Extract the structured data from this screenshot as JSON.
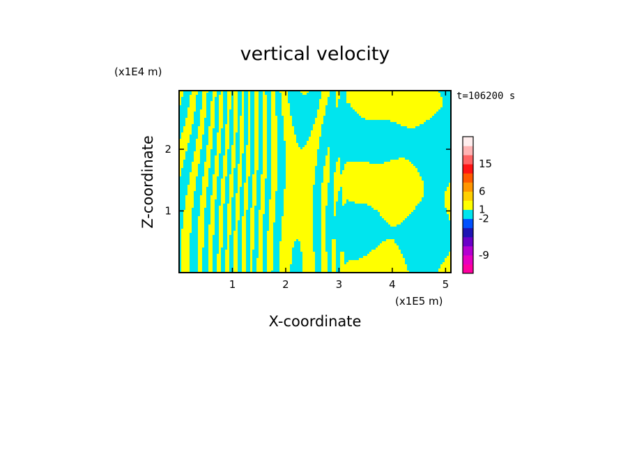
{
  "chart_data": {
    "type": "heatmap",
    "title": "vertical velocity",
    "xlabel": "X-coordinate",
    "ylabel": "Z-coordinate",
    "x_unit": "(x1E5 m)",
    "y_unit": "(x1E4 m)",
    "time_label": "t=106200 s",
    "xlim": [
      0,
      5.1
    ],
    "ylim": [
      0,
      2.95
    ],
    "x_ticks": [
      "1",
      "2",
      "3",
      "4",
      "5"
    ],
    "y_ticks": [
      "1",
      "2"
    ],
    "x_tick_values": [
      1,
      2,
      3,
      4,
      5
    ],
    "y_tick_values": [
      1,
      2
    ],
    "field_colors": {
      "positive": "#ffff00",
      "negative": "#00e5ee"
    },
    "colorbar": {
      "labels": [
        "15",
        "6",
        "1",
        "-2",
        "-9"
      ],
      "label_values": [
        15,
        6,
        1,
        -2,
        -9
      ],
      "bands": [
        {
          "color": "#ff00a0"
        },
        {
          "color": "#e600c0"
        },
        {
          "color": "#b400d0"
        },
        {
          "color": "#6a00c8"
        },
        {
          "color": "#1e14b4"
        },
        {
          "color": "#0050ff"
        },
        {
          "color": "#00e5ee"
        },
        {
          "color": "#ffff00"
        },
        {
          "color": "#ffd000"
        },
        {
          "color": "#ff9600"
        },
        {
          "color": "#ff5a00"
        },
        {
          "color": "#ff1414"
        },
        {
          "color": "#ff6464"
        },
        {
          "color": "#ffb4b4"
        },
        {
          "color": "#ffeeee"
        }
      ]
    }
  }
}
